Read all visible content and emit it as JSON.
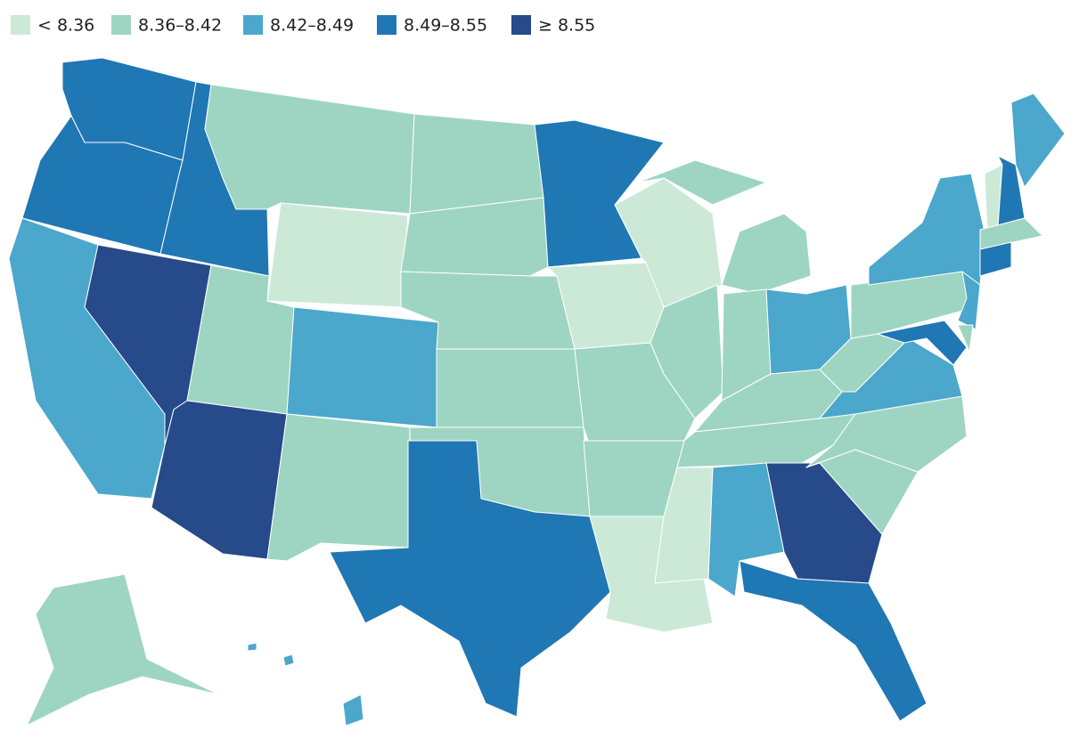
{
  "legend": {
    "items": [
      {
        "label": "< 8.36",
        "color": "#cce9d7"
      },
      {
        "label": "8.36–8.42",
        "color": "#9ed5c2"
      },
      {
        "label": "8.42–8.49",
        "color": "#4ba7cb"
      },
      {
        "label": "8.49–8.55",
        "color": "#1f77b4"
      },
      {
        "label": "≥ 8.55",
        "color": "#264a8a"
      }
    ]
  },
  "map": {
    "regions": [
      {
        "color": "#1f77b4"
      },
      {
        "color": "#1f77b4"
      },
      {
        "color": "#4ba7cb"
      },
      {
        "color": "#264a8a"
      },
      {
        "color": "#1f77b4"
      },
      {
        "color": "#9ed5c2"
      },
      {
        "color": "#cce9d7"
      },
      {
        "color": "#9ed5c2"
      },
      {
        "color": "#264a8a"
      },
      {
        "color": "#4ba7cb"
      },
      {
        "color": "#9ed5c2"
      },
      {
        "color": "#9ed5c2"
      },
      {
        "color": "#9ed5c2"
      },
      {
        "color": "#9ed5c2"
      },
      {
        "color": "#9ed5c2"
      },
      {
        "color": "#9ed5c2"
      },
      {
        "color": "#1f77b4"
      },
      {
        "color": "#1f77b4"
      },
      {
        "color": "#cce9d7"
      },
      {
        "color": "#9ed5c2"
      },
      {
        "color": "#9ed5c2"
      },
      {
        "color": "#cce9d7"
      },
      {
        "color": "#cce9d7"
      },
      {
        "color": "#9ed5c2"
      },
      {
        "color": "#9ed5c2"
      },
      {
        "color": "#9ed5c2"
      },
      {
        "color": "#4ba7cb"
      },
      {
        "color": "#9ed5c2"
      },
      {
        "color": "#9ed5c2"
      },
      {
        "color": "#cce9d7"
      },
      {
        "color": "#4ba7cb"
      },
      {
        "color": "#264a8a"
      },
      {
        "color": "#1f77b4"
      },
      {
        "color": "#9ed5c2"
      },
      {
        "color": "#9ed5c2"
      },
      {
        "color": "#4ba7cb"
      },
      {
        "color": "#9ed5c2"
      },
      {
        "color": "#9ed5c2"
      },
      {
        "color": "#4ba7cb"
      },
      {
        "color": "#4ba7cb"
      },
      {
        "color": "#1f77b4"
      },
      {
        "color": "#9ed5c2"
      },
      {
        "color": "#cce9d7"
      },
      {
        "color": "#1f77b4"
      },
      {
        "color": "#4ba7cb"
      },
      {
        "color": "#9ed5c2"
      },
      {
        "color": "#1f77b4"
      },
      {
        "color": "#9ed5c2"
      },
      {
        "color": "#4ba7cb"
      }
    ]
  }
}
